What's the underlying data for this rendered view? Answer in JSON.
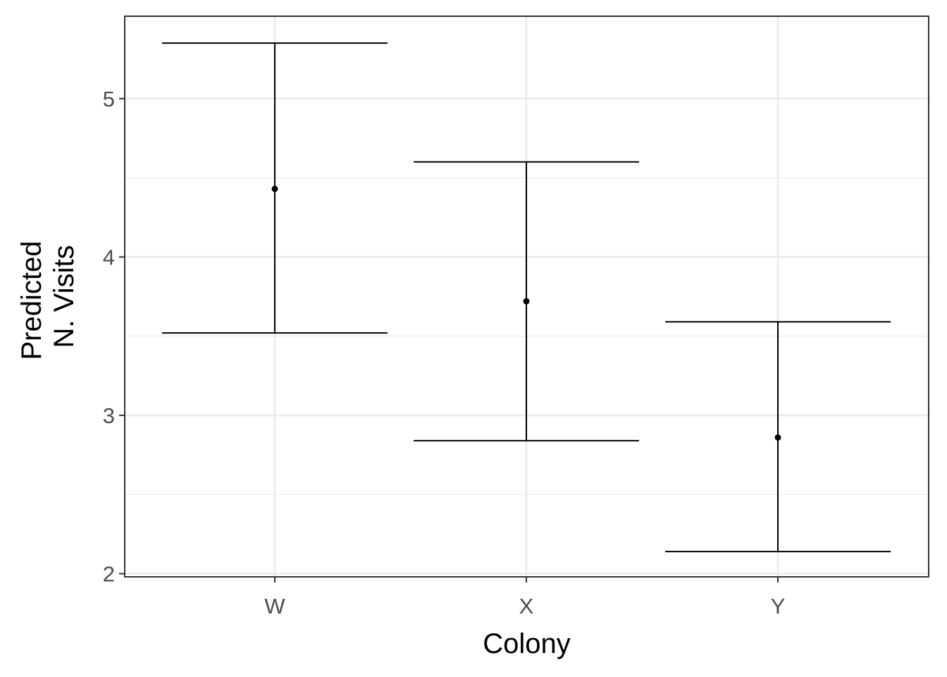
{
  "chart_data": {
    "type": "errorbar",
    "title": "",
    "xlabel": "Colony",
    "ylabel": [
      "Predicted",
      "N. Visits"
    ],
    "categories": [
      "W",
      "X",
      "Y"
    ],
    "values": [
      4.43,
      3.72,
      2.86
    ],
    "lower": [
      3.52,
      2.84,
      2.14
    ],
    "upper": [
      5.35,
      4.6,
      3.59
    ],
    "ylim": [
      1.98,
      5.52
    ],
    "yticks": [
      2,
      3,
      4,
      5
    ],
    "ytick_labels": [
      "2",
      "3",
      "4",
      "5"
    ],
    "grid": true,
    "legend": "none",
    "colors": {
      "mark": "#000000",
      "grid": "#ebebeb",
      "panel_border": "#333333",
      "tick_text": "#4d4d4d"
    }
  }
}
